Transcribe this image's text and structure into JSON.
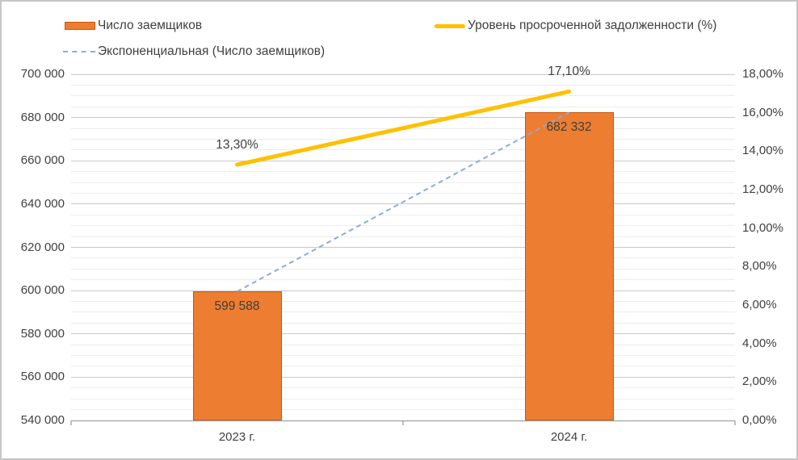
{
  "chart_data": {
    "type": "combo",
    "categories": [
      "2023 г.",
      "2024 г."
    ],
    "series": [
      {
        "name": "Число заемщиков",
        "type": "bar",
        "axis": "left",
        "values": [
          599588,
          682332
        ],
        "data_labels": [
          "599 588",
          "682 332"
        ],
        "color": "#ED7D31",
        "border_color": "#C55A11"
      },
      {
        "name": "Уровень просроченной задолженности (%)",
        "type": "line",
        "axis": "right",
        "values": [
          13.3,
          17.1
        ],
        "data_labels": [
          "13,30%",
          "17,10%"
        ],
        "color": "#FFC000"
      },
      {
        "name": "Экспоненциальная (Число заемщиков)",
        "type": "trendline",
        "axis": "left",
        "values": [
          599588,
          682332
        ],
        "color": "#8FAADC",
        "dashed": true
      }
    ],
    "left_axis": {
      "min": 540000,
      "max": 700000,
      "major": 20000,
      "minor": 5000,
      "tick_labels": [
        "700 000",
        "680 000",
        "660 000",
        "640 000",
        "620 000",
        "600 000",
        "580 000",
        "560 000",
        "540 000"
      ]
    },
    "right_axis": {
      "min": 0,
      "max": 18,
      "major": 2,
      "tick_labels": [
        "18,00%",
        "16,00%",
        "14,00%",
        "12,00%",
        "10,00%",
        "8,00%",
        "6,00%",
        "4,00%",
        "2,00%",
        "0,00%"
      ]
    },
    "legend_position": "top",
    "grid": {
      "major_color": "#C9C9C9",
      "minor_color": "#ECECEC"
    },
    "axis_line_color": "#9E9E9E",
    "text_color": "#404040",
    "background": "#FFFFFF"
  }
}
